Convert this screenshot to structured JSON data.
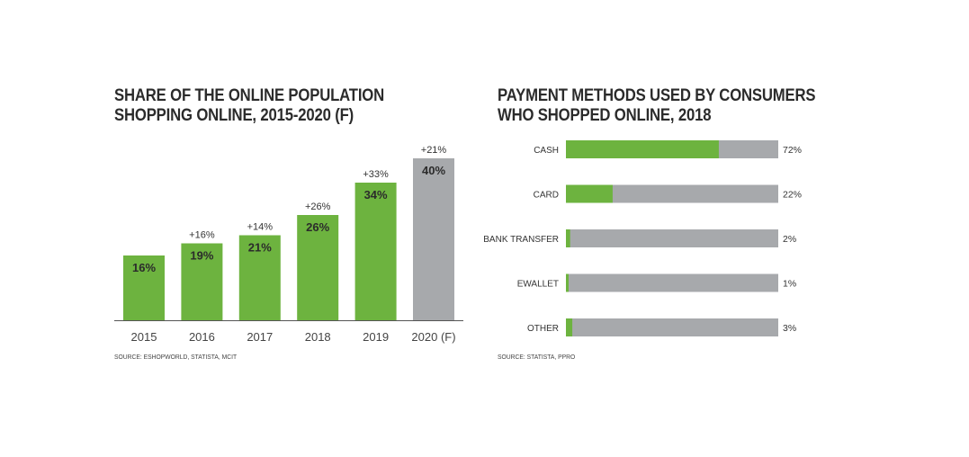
{
  "left_chart": {
    "title_line1": "SHARE OF THE ONLINE POPULATION",
    "title_line2": "SHOPPING ONLINE, 2015-2020 (F)",
    "source": "SOURCE: ESHOPWORLD, STATISTA, MCIT"
  },
  "right_chart": {
    "title_line1": "PAYMENT METHODS USED BY CONSUMERS",
    "title_line2": "WHO SHOPPED ONLINE, 2018",
    "source": "SOURCE: STATISTA, PPRO"
  },
  "colors": {
    "green": "#6db33f",
    "grey": "#a7a9ac",
    "text": "#2b2b2b"
  },
  "chart_data": [
    {
      "type": "bar",
      "title": "SHARE OF THE ONLINE POPULATION SHOPPING ONLINE, 2015-2020 (F)",
      "categories": [
        "2015",
        "2016",
        "2017",
        "2018",
        "2019",
        "2020 (F)"
      ],
      "values": [
        16,
        19,
        21,
        26,
        34,
        40
      ],
      "value_labels": [
        "16%",
        "19%",
        "21%",
        "26%",
        "34%",
        "40%"
      ],
      "growth_labels": [
        "",
        "+16%",
        "+14%",
        "+26%",
        "+33%",
        "+21%"
      ],
      "forecast": [
        false,
        false,
        false,
        false,
        false,
        true
      ],
      "ylim": [
        0,
        40
      ],
      "grid": false,
      "legend": "none"
    },
    {
      "type": "bar",
      "orientation": "horizontal",
      "title": "PAYMENT METHODS USED BY CONSUMERS WHO SHOPPED ONLINE, 2018",
      "categories": [
        "CASH",
        "CARD",
        "BANK TRANSFER",
        "EWALLET",
        "OTHER"
      ],
      "values": [
        72,
        22,
        2,
        1,
        3
      ],
      "value_labels": [
        "72%",
        "22%",
        "2%",
        "1%",
        "3%"
      ],
      "xlim": [
        0,
        100
      ],
      "grid": false,
      "legend": "none"
    }
  ]
}
